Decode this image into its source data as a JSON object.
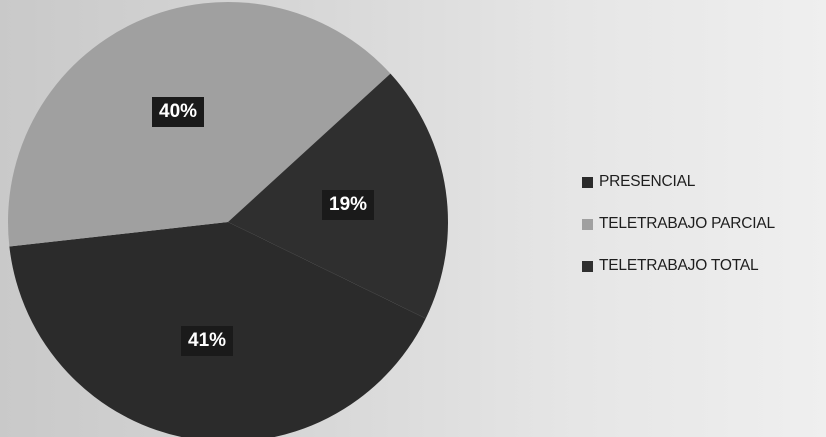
{
  "chart_data": {
    "type": "pie",
    "title": "",
    "slices": [
      {
        "name": "PRESENCIAL",
        "value": 41,
        "label": "41%",
        "color": "#2b2b2b"
      },
      {
        "name": "TELETRABAJO PARCIAL",
        "value": 40,
        "label": "40%",
        "color": "#a0a0a0"
      },
      {
        "name": "TELETRABAJO TOTAL",
        "value": 19,
        "label": "19%",
        "color": "#2f2f2f"
      }
    ],
    "legend_position": "right"
  }
}
